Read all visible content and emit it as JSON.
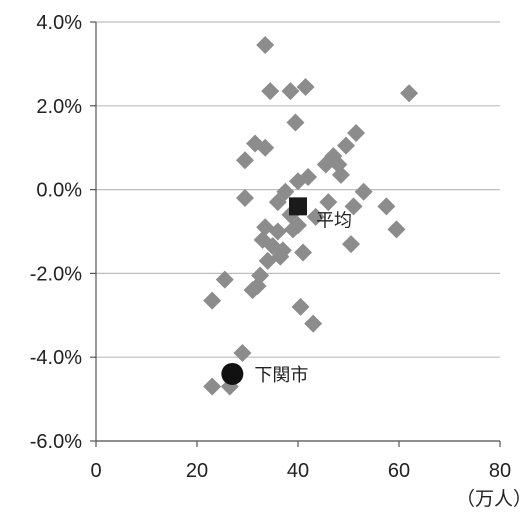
{
  "chart_data": {
    "type": "scatter",
    "title": "",
    "xlabel": "（万人）",
    "ylabel": "",
    "xlim": [
      0,
      80
    ],
    "ylim": [
      -6,
      4
    ],
    "x_ticks": [
      0,
      20,
      40,
      60,
      80
    ],
    "x_tick_labels": [
      "0",
      "20",
      "40",
      "60",
      "80"
    ],
    "y_ticks": [
      4,
      2,
      0,
      -2,
      -4,
      -6
    ],
    "y_tick_labels": [
      "4.0%",
      "2.0%",
      "0.0%",
      "-2.0%",
      "-4.0%",
      "-6.0%"
    ],
    "grid": "horizontal",
    "colors": {
      "points": "#8c8c8c",
      "average": "#1a1a1a",
      "highlight": "#111111",
      "axis": "#555555",
      "grid": "#bdbdbd"
    },
    "series": [
      {
        "marker": "diamond",
        "points": [
          [
            33.5,
            3.45
          ],
          [
            34.5,
            2.35
          ],
          [
            38.5,
            2.35
          ],
          [
            41.5,
            2.45
          ],
          [
            62.0,
            2.3
          ],
          [
            39.5,
            1.6
          ],
          [
            31.5,
            1.1
          ],
          [
            33.5,
            1.0
          ],
          [
            29.5,
            0.7
          ],
          [
            51.5,
            1.35
          ],
          [
            49.5,
            1.05
          ],
          [
            47.0,
            0.8
          ],
          [
            48.0,
            0.6
          ],
          [
            45.5,
            0.6
          ],
          [
            42.0,
            0.3
          ],
          [
            40.0,
            0.2
          ],
          [
            37.5,
            -0.05
          ],
          [
            48.5,
            0.35
          ],
          [
            53.0,
            -0.05
          ],
          [
            29.5,
            -0.2
          ],
          [
            36.0,
            -0.3
          ],
          [
            46.0,
            -0.3
          ],
          [
            51.0,
            -0.4
          ],
          [
            57.5,
            -0.4
          ],
          [
            38.5,
            -0.6
          ],
          [
            43.5,
            -0.65
          ],
          [
            40.0,
            -0.85
          ],
          [
            33.5,
            -0.9
          ],
          [
            36.0,
            -1.0
          ],
          [
            39.0,
            -0.95
          ],
          [
            59.5,
            -0.95
          ],
          [
            35.0,
            -1.35
          ],
          [
            33.0,
            -1.2
          ],
          [
            37.0,
            -1.45
          ],
          [
            41.0,
            -1.5
          ],
          [
            50.5,
            -1.3
          ],
          [
            34.0,
            -1.7
          ],
          [
            36.5,
            -1.6
          ],
          [
            32.5,
            -2.05
          ],
          [
            25.5,
            -2.15
          ],
          [
            32.0,
            -2.3
          ],
          [
            31.0,
            -2.4
          ],
          [
            23.0,
            -2.65
          ],
          [
            40.5,
            -2.8
          ],
          [
            43.0,
            -3.2
          ],
          [
            29.0,
            -3.9
          ],
          [
            23.0,
            -4.7
          ],
          [
            26.5,
            -4.7
          ]
        ]
      }
    ],
    "annotations": [
      {
        "label": "平均",
        "x": 40.0,
        "y": -0.4,
        "marker": "square"
      },
      {
        "label": "下関市",
        "x": 27.0,
        "y": -4.4,
        "marker": "circle"
      }
    ]
  }
}
